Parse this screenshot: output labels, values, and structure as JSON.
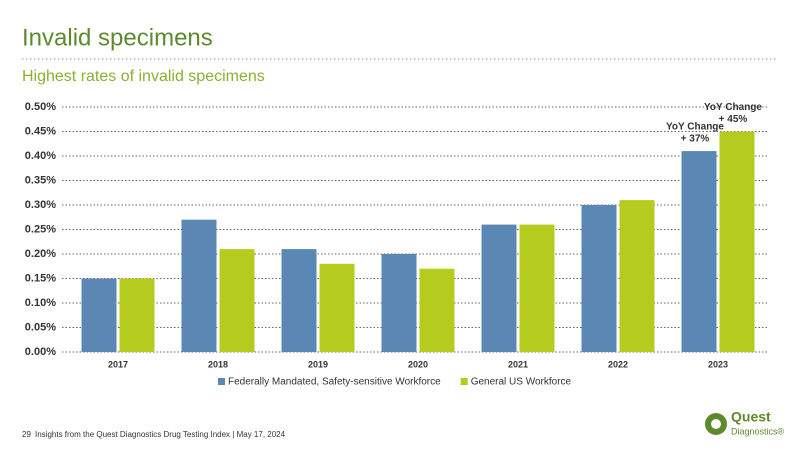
{
  "header": {
    "title": "Invalid specimens",
    "subtitle": "Highest rates of invalid specimens"
  },
  "chart_data": {
    "type": "bar",
    "categories": [
      "2017",
      "2018",
      "2019",
      "2020",
      "2021",
      "2022",
      "2023"
    ],
    "series": [
      {
        "name": "Federally Mandated, Safety-sensitive Workforce",
        "color": "#5b87b4",
        "values": [
          0.15,
          0.27,
          0.21,
          0.2,
          0.26,
          0.3,
          0.41
        ]
      },
      {
        "name": "General US Workforce",
        "color": "#b5cc1e",
        "values": [
          0.15,
          0.21,
          0.18,
          0.17,
          0.26,
          0.31,
          0.45
        ]
      }
    ],
    "ylim": [
      0,
      0.5
    ],
    "yticks": [
      {
        "value": 0,
        "label": "0.00%"
      },
      {
        "value": 0.05,
        "label": "0.05%"
      },
      {
        "value": 0.1,
        "label": "0.10%"
      },
      {
        "value": 0.15,
        "label": "0.15%"
      },
      {
        "value": 0.2,
        "label": "0.20%"
      },
      {
        "value": 0.25,
        "label": "0.25%"
      },
      {
        "value": 0.3,
        "label": "0.30%"
      },
      {
        "value": 0.35,
        "label": "0.35%"
      },
      {
        "value": 0.4,
        "label": "0.40%"
      },
      {
        "value": 0.45,
        "label": "0.45%"
      },
      {
        "value": 0.5,
        "label": "0.50%"
      }
    ],
    "grid": true,
    "annotations": [
      [
        "YoY Change",
        "+ 37%"
      ],
      [
        "YoY Change",
        "+ 45%"
      ]
    ]
  },
  "footer": {
    "page": "29",
    "text": "Insights from the Quest Diagnostics Drug Testing Index  |  May 17, 2024"
  },
  "logo": {
    "name": "Quest",
    "sub": "Diagnostics®"
  }
}
